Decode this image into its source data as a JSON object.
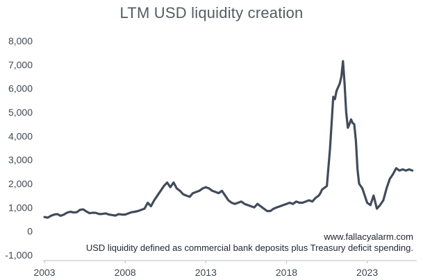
{
  "chart_data": {
    "type": "line",
    "title": "LTM USD liquidity creation",
    "xlabel": "",
    "ylabel": "",
    "xlim": [
      2003.0,
      2025.9
    ],
    "ylim": [
      -1000,
      8000
    ],
    "y_ticks": [
      -1000,
      0,
      1000,
      2000,
      3000,
      4000,
      5000,
      6000,
      7000,
      8000
    ],
    "y_tick_labels": [
      "-1,000",
      "0",
      "1,000",
      "2,000",
      "3,000",
      "4,000",
      "5,000",
      "6,000",
      "7,000",
      "8,000"
    ],
    "x_ticks": [
      2003,
      2008,
      2013,
      2018,
      2023
    ],
    "x_tick_labels": [
      "2003",
      "2008",
      "2013",
      "2018",
      "2023"
    ],
    "grid": false,
    "series": [
      {
        "name": "LTM USD liquidity creation",
        "color": "#414b5a",
        "x": [
          2003.0,
          2003.2,
          2003.4,
          2003.6,
          2003.8,
          2004.0,
          2004.2,
          2004.4,
          2004.6,
          2004.8,
          2005.0,
          2005.2,
          2005.4,
          2005.6,
          2005.8,
          2006.0,
          2006.2,
          2006.4,
          2006.6,
          2006.8,
          2007.0,
          2007.2,
          2007.4,
          2007.6,
          2007.8,
          2008.0,
          2008.2,
          2008.4,
          2008.6,
          2008.8,
          2009.0,
          2009.2,
          2009.4,
          2009.6,
          2009.8,
          2010.0,
          2010.2,
          2010.4,
          2010.6,
          2010.8,
          2011.0,
          2011.2,
          2011.4,
          2011.6,
          2011.8,
          2012.0,
          2012.2,
          2012.4,
          2012.6,
          2012.8,
          2013.0,
          2013.2,
          2013.4,
          2013.6,
          2013.8,
          2014.0,
          2014.2,
          2014.4,
          2014.6,
          2014.8,
          2015.0,
          2015.2,
          2015.4,
          2015.6,
          2015.8,
          2016.0,
          2016.2,
          2016.4,
          2016.6,
          2016.8,
          2017.0,
          2017.2,
          2017.4,
          2017.6,
          2017.8,
          2018.0,
          2018.2,
          2018.4,
          2018.6,
          2018.8,
          2019.0,
          2019.2,
          2019.4,
          2019.6,
          2019.8,
          2020.0,
          2020.1,
          2020.2,
          2020.3,
          2020.5,
          2020.7,
          2020.9,
          2021.0,
          2021.1,
          2021.2,
          2021.3,
          2021.4,
          2021.5,
          2021.6,
          2021.7,
          2021.8,
          2021.9,
          2022.0,
          2022.1,
          2022.2,
          2022.3,
          2022.4,
          2022.5,
          2022.7,
          2022.9,
          2023.0,
          2023.2,
          2023.4,
          2023.6,
          2023.8,
          2024.0,
          2024.2,
          2024.4,
          2024.6,
          2024.8,
          2025.0,
          2025.2,
          2025.4,
          2025.6,
          2025.8
        ],
        "values": [
          600,
          570,
          650,
          700,
          720,
          650,
          700,
          780,
          820,
          790,
          800,
          900,
          920,
          830,
          760,
          780,
          770,
          720,
          730,
          750,
          700,
          680,
          660,
          720,
          700,
          700,
          750,
          800,
          820,
          850,
          900,
          950,
          1200,
          1050,
          1300,
          1500,
          1700,
          1900,
          2050,
          1850,
          2050,
          1800,
          1700,
          1550,
          1500,
          1450,
          1600,
          1650,
          1700,
          1800,
          1850,
          1800,
          1700,
          1650,
          1600,
          1700,
          1500,
          1300,
          1200,
          1150,
          1200,
          1250,
          1150,
          1100,
          1050,
          1000,
          1150,
          1050,
          950,
          850,
          850,
          950,
          1000,
          1050,
          1100,
          1150,
          1200,
          1150,
          1250,
          1200,
          1200,
          1250,
          1300,
          1250,
          1400,
          1500,
          1600,
          1750,
          1800,
          1900,
          3500,
          5650,
          5550,
          5900,
          6050,
          6200,
          6500,
          7150,
          6200,
          5000,
          4350,
          4500,
          4700,
          4550,
          4500,
          3800,
          2600,
          2000,
          1800,
          1400,
          1200,
          1100,
          1500,
          950,
          1100,
          1300,
          1800,
          2200,
          2400,
          2650,
          2550,
          2600,
          2550,
          2600,
          2550
        ]
      }
    ],
    "annotations": [
      "www.fallacyalarm.com",
      "USD liquidity defined as commercial bank deposits plus Treasury deficit spending."
    ]
  }
}
